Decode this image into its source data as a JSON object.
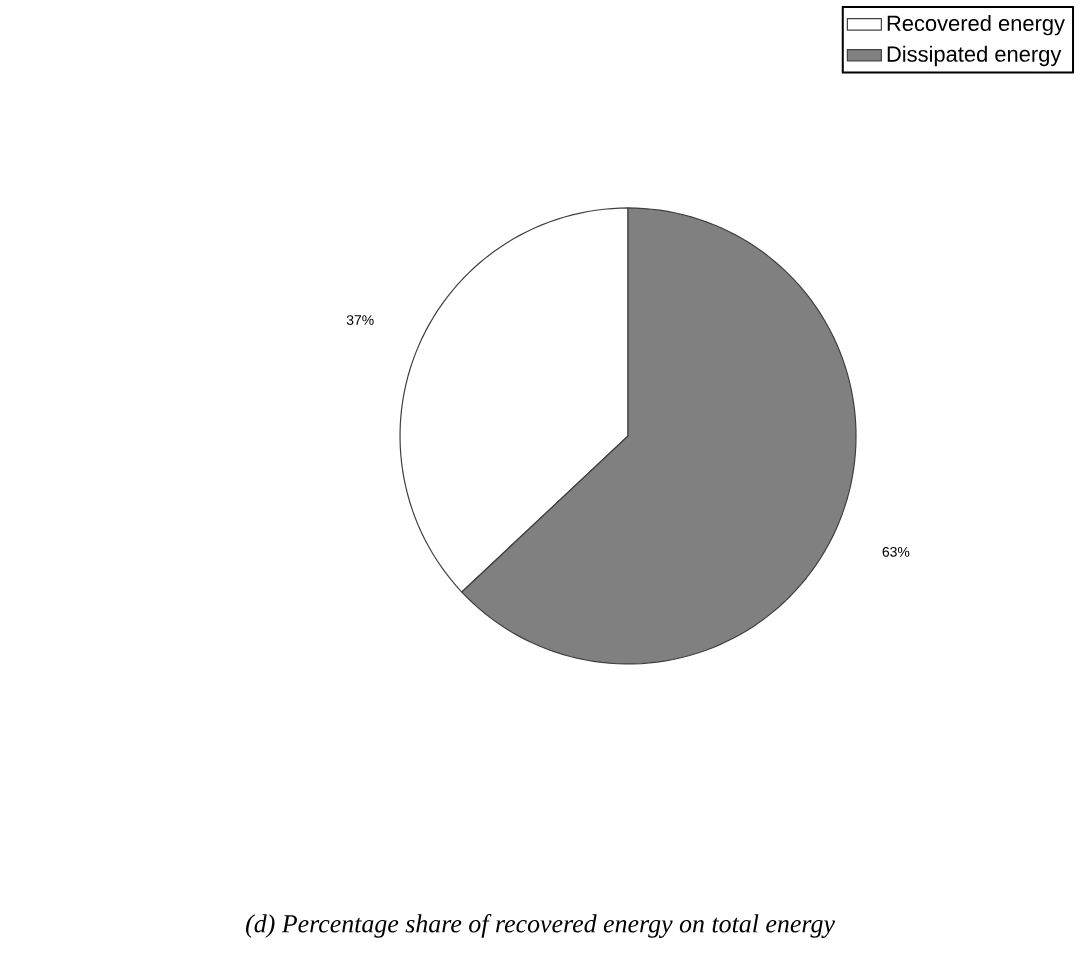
{
  "chart_data": {
    "type": "pie",
    "title": "(d) Percentage share of recovered energy on total energy",
    "categories": [
      "Recovered energy",
      "Dissipated energy"
    ],
    "values": [
      37,
      63
    ],
    "colors": [
      "#ffffff",
      "#808080"
    ],
    "value_labels": [
      "37%",
      "63%"
    ],
    "legend": "top right"
  }
}
